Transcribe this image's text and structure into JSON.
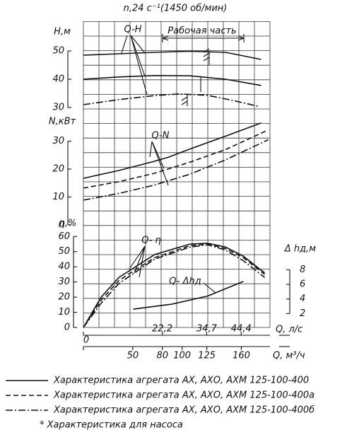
{
  "chart_data": [
    {
      "type": "line",
      "title": "n,24 с⁻¹(1450 об/мин)",
      "ylabel": "H,м",
      "ylim": [
        30,
        60
      ],
      "yticks": [
        30,
        40,
        50
      ],
      "xlim": [
        0,
        52.5
      ],
      "annotations": [
        "Q-H",
        "Рабочая часть"
      ],
      "series": [
        {
          "style": "solid",
          "color": "#111111",
          "x": [
            0,
            10,
            20,
            30,
            40,
            50
          ],
          "values": [
            48.5,
            49,
            49.5,
            49.9,
            49.5,
            47
          ]
        },
        {
          "style": "solid",
          "color": "#111111",
          "x": [
            0,
            10,
            20,
            30,
            40,
            50
          ],
          "values": [
            40,
            40.8,
            41.3,
            41.2,
            40,
            37.8
          ]
        },
        {
          "style": "dashdot",
          "color": "#111111",
          "x": [
            0,
            10,
            20,
            27,
            35,
            42,
            49
          ],
          "values": [
            31,
            32.8,
            34.2,
            34.8,
            34.3,
            32.5,
            30.5
          ]
        }
      ]
    },
    {
      "type": "line",
      "ylabel": "N,кВт",
      "ylim": [
        0,
        38
      ],
      "yticks": [
        0,
        10,
        20,
        30
      ],
      "xlim": [
        0,
        52.5
      ],
      "annotations": [
        "Q-N"
      ],
      "series": [
        {
          "style": "solid",
          "color": "#111111",
          "x": [
            0,
            10,
            20,
            24,
            30,
            40,
            50
          ],
          "values": [
            16.7,
            19.5,
            22.8,
            24.3,
            27.2,
            31.8,
            36.5
          ]
        },
        {
          "style": "dashed",
          "color": "#111111",
          "x": [
            0,
            10,
            20,
            30,
            40,
            52
          ],
          "values": [
            13.2,
            15.5,
            18.5,
            22.5,
            27,
            34
          ]
        },
        {
          "style": "dashdot",
          "color": "#111111",
          "x": [
            0,
            10,
            20,
            30,
            40,
            52
          ],
          "values": [
            8.9,
            11.3,
            14.3,
            18.2,
            23.3,
            30.5
          ]
        }
      ]
    },
    {
      "type": "line",
      "ylabel": "η,%",
      "ylim": [
        0,
        62
      ],
      "yticks": [
        0,
        10,
        20,
        30,
        40,
        50,
        60
      ],
      "y2label": "Δ hд,м",
      "y2lim": [
        0,
        9
      ],
      "y2ticks": [
        2,
        4,
        6,
        8
      ],
      "xlabel": "Q, л/с",
      "xlim": [
        0,
        52.5
      ],
      "xticks": [
        0,
        {
          "value": 22.2,
          "label": "22,2"
        },
        {
          "value": 34.7,
          "label": "34,7"
        },
        {
          "value": 44.4,
          "label": "44,4"
        }
      ],
      "x2label": "Q, м³/ч",
      "x2lim": [
        0,
        189
      ],
      "x2ticks": [
        0,
        50,
        80,
        100,
        125,
        160
      ],
      "annotations": [
        "Q- η",
        "Q- Δhд"
      ],
      "series": [
        {
          "style": "solid",
          "color": "#111111",
          "x": [
            0,
            5,
            10,
            20,
            30,
            35,
            40,
            45,
            51
          ],
          "values": [
            0,
            20,
            33,
            48,
            55,
            55.5,
            53,
            47,
            36
          ]
        },
        {
          "style": "dashed",
          "color": "#111111",
          "x": [
            0,
            5,
            10,
            20,
            30,
            35,
            40,
            45,
            51
          ],
          "values": [
            0,
            18,
            31,
            46,
            54,
            55,
            52,
            46,
            35
          ]
        },
        {
          "style": "dashdot",
          "color": "#111111",
          "x": [
            0,
            5,
            10,
            20,
            30,
            35,
            40,
            45,
            51
          ],
          "values": [
            0,
            16,
            29,
            45,
            53,
            54.5,
            51,
            44,
            33
          ]
        },
        {
          "style": "solid",
          "color": "#111111",
          "axis": "y2",
          "x": [
            14,
            25,
            35,
            45
          ],
          "values": [
            2.6,
            3.3,
            4.4,
            6.4
          ]
        }
      ]
    }
  ],
  "legend": [
    {
      "label": "Характеристика агрегата АХ, АХО, АХМ 125-100-400",
      "style": "solid"
    },
    {
      "label": "Характеристика агрегата АХ, АХО, АХМ 125-100-400а",
      "style": "dashed"
    },
    {
      "label": "Характеристика агрегата АХ, АХО, АХМ 125-100-400б",
      "style": "dashdot"
    },
    {
      "label": "* Характеристика для насоса",
      "style": "none"
    }
  ]
}
